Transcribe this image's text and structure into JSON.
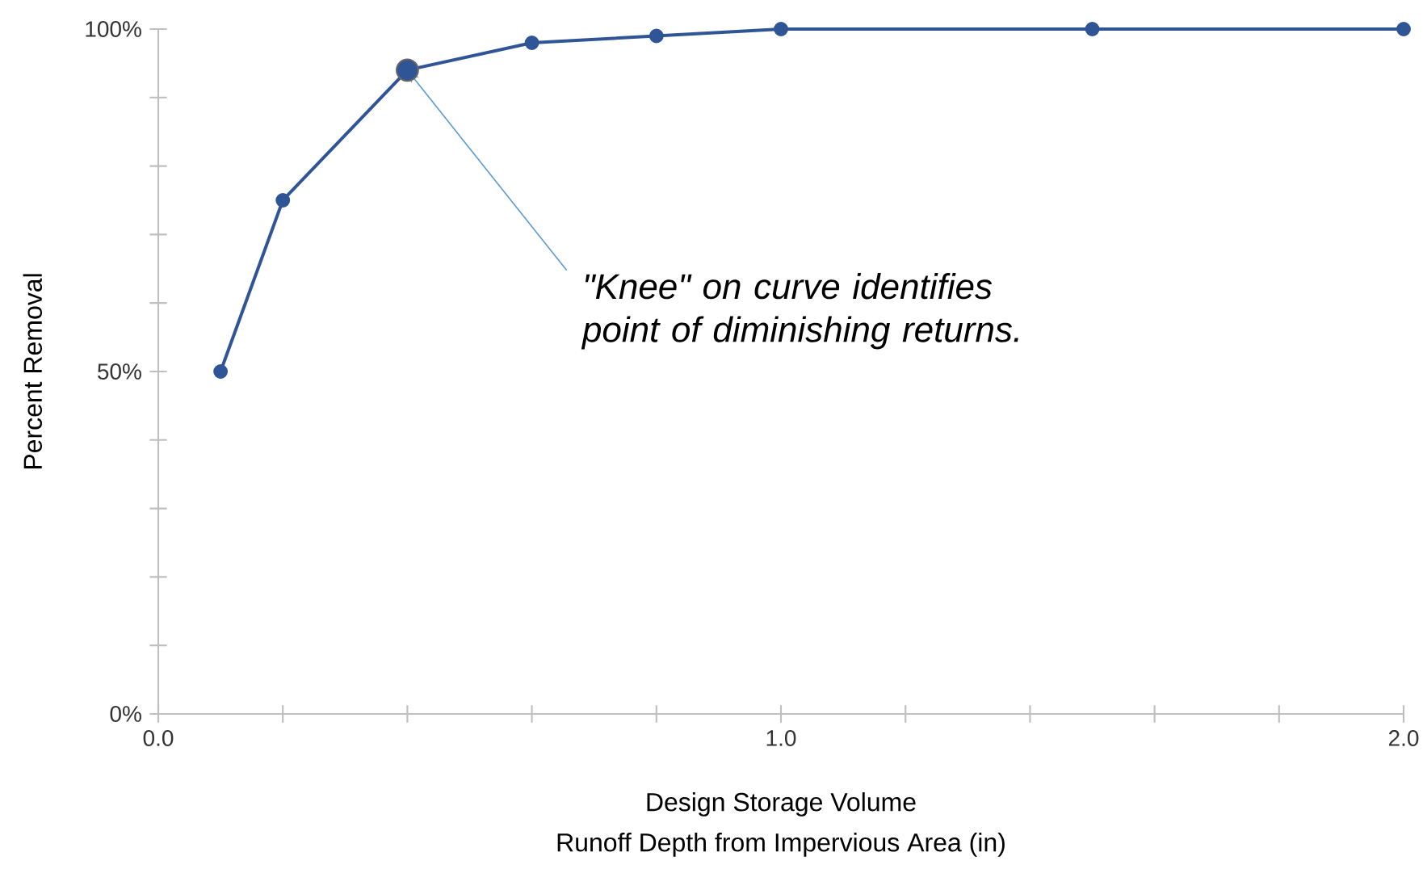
{
  "chart_data": {
    "type": "line",
    "xlabel": "Design Storage Volume",
    "ylabel": "Percent Removal",
    "x": [
      0.1,
      0.2,
      0.4,
      0.6,
      0.8,
      1.0,
      1.5,
      2.0
    ],
    "series": [
      {
        "color": "#2f5597",
        "values": [
          50,
          75,
          94,
          98,
          99,
          100,
          100,
          100
        ]
      },
      {
        "type": "scatter",
        "color": "#2f5597",
        "x": [
          0.4
        ],
        "values": [
          94
        ]
      }
    ],
    "marker": "circle",
    "line_style": "solid",
    "grid": false,
    "xlim": [
      0,
      2
    ],
    "ylim": [
      0,
      100
    ],
    "xticks": [
      {
        "value": 0,
        "label": "0.0"
      },
      {
        "value": 0.2,
        "label": null
      },
      {
        "value": 0.4,
        "label": null
      },
      {
        "value": 0.6,
        "label": null
      },
      {
        "value": 0.8,
        "label": null
      },
      {
        "value": 1,
        "label": "1.0"
      },
      {
        "value": 1.2,
        "label": null
      },
      {
        "value": 1.4,
        "label": null
      },
      {
        "value": 1.6,
        "label": null
      },
      {
        "value": 1.8,
        "label": null
      },
      {
        "value": 2,
        "label": "2.0"
      }
    ],
    "yticks": [
      {
        "value": 0,
        "label": "0%"
      },
      {
        "value": 10,
        "label": null
      },
      {
        "value": 20,
        "label": null
      },
      {
        "value": 30,
        "label": null
      },
      {
        "value": 40,
        "label": null
      },
      {
        "value": 50,
        "label": "50%"
      },
      {
        "value": 60,
        "label": null
      },
      {
        "value": 70,
        "label": null
      },
      {
        "value": 80,
        "label": null
      },
      {
        "value": 90,
        "label": null
      },
      {
        "value": 100,
        "label": "100%"
      }
    ],
    "annotations": [
      {
        "text": "\"Knee\" on curve identifies point of diminishing returns.",
        "x": 0.4,
        "y": 94
      },
      "Runoff Depth from Impervious Area (in)"
    ]
  }
}
